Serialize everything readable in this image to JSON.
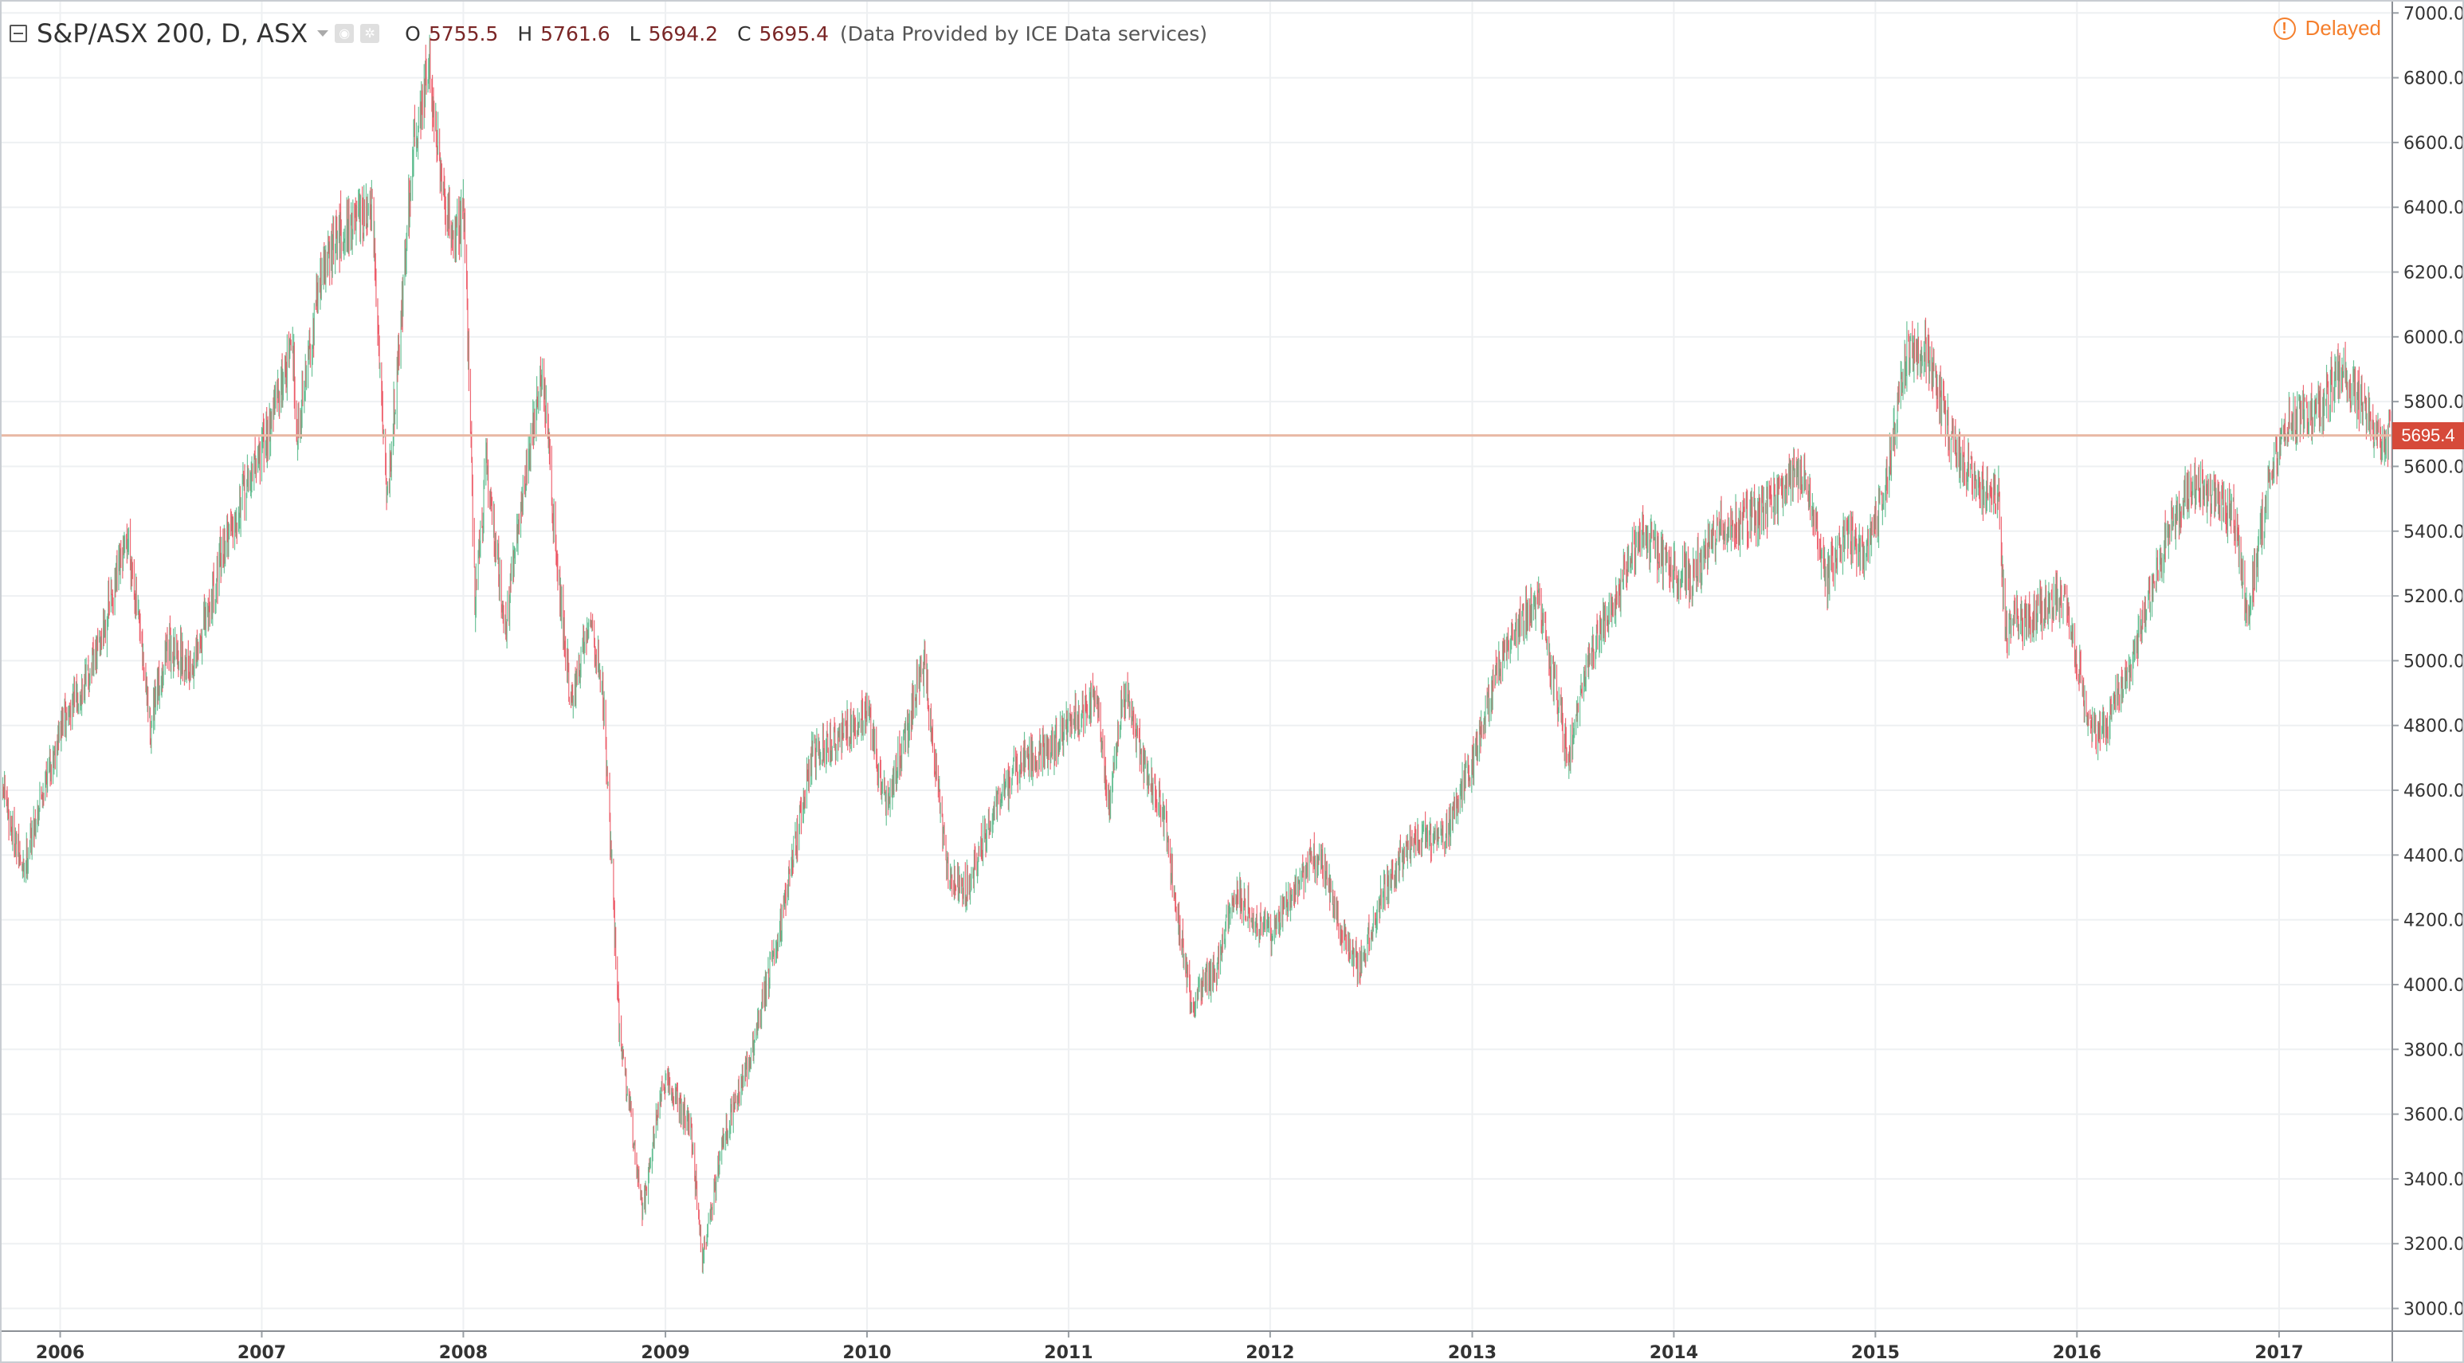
{
  "header": {
    "symbol": "S&P/ASX 200, D, ASX",
    "ohlc": [
      {
        "key": "O",
        "value": "5755.5"
      },
      {
        "key": "H",
        "value": "5761.6"
      },
      {
        "key": "L",
        "value": "5694.2"
      },
      {
        "key": "C",
        "value": "5695.4"
      }
    ],
    "provider": "(Data Provided by ICE Data services)",
    "status": "Delayed"
  },
  "colors": {
    "up": "#53b987",
    "down": "#eb4d5c",
    "last_price_line": "#e8b9a5",
    "last_price_tag": "#d64a3a",
    "grid": "#eef0f2",
    "axis_text": "#333333",
    "delayed": "#f57f2c"
  },
  "chart_data": {
    "type": "candlestick",
    "interval": "daily",
    "y_axis": {
      "position": "right",
      "range": [
        2930,
        7040
      ],
      "ticks": [
        "3000.0",
        "3200.0",
        "3400.0",
        "3600.0",
        "3800.0",
        "4000.0",
        "4200.0",
        "4400.0",
        "4600.0",
        "4800.0",
        "5000.0",
        "5200.0",
        "5400.0",
        "5600.0",
        "5800.0",
        "6000.0",
        "6200.0",
        "6400.0",
        "6600.0",
        "6800.0",
        "7000.0"
      ]
    },
    "x_axis": {
      "range": [
        "2005-09-14",
        "2017-07-25"
      ],
      "ticks": [
        "2006",
        "2007",
        "2008",
        "2009",
        "2010",
        "2011",
        "2012",
        "2013",
        "2014",
        "2015",
        "2016",
        "2017"
      ]
    },
    "last_price": "5695.4",
    "grid": true,
    "series": [
      {
        "approx_close_path": [
          [
            "2005-09-14",
            4630
          ],
          [
            "2005-10-25",
            4350
          ],
          [
            "2005-11-30",
            4600
          ],
          [
            "2006-01-04",
            4800
          ],
          [
            "2006-03-01",
            4980
          ],
          [
            "2006-05-05",
            5380
          ],
          [
            "2006-06-14",
            4780
          ],
          [
            "2006-07-12",
            5050
          ],
          [
            "2006-08-31",
            4980
          ],
          [
            "2006-11-01",
            5400
          ],
          [
            "2007-01-01",
            5650
          ],
          [
            "2007-02-26",
            5980
          ],
          [
            "2007-03-06",
            5700
          ],
          [
            "2007-04-19",
            6200
          ],
          [
            "2007-05-30",
            6340
          ],
          [
            "2007-06-28",
            6350
          ],
          [
            "2007-07-20",
            6380
          ],
          [
            "2007-08-16",
            5500
          ],
          [
            "2007-09-12",
            6100
          ],
          [
            "2007-10-03",
            6600
          ],
          [
            "2007-11-01",
            6830
          ],
          [
            "2007-11-26",
            6400
          ],
          [
            "2007-12-18",
            6300
          ],
          [
            "2008-01-03",
            6400
          ],
          [
            "2008-01-22",
            5200
          ],
          [
            "2008-02-12",
            5600
          ],
          [
            "2008-03-18",
            5100
          ],
          [
            "2008-04-16",
            5500
          ],
          [
            "2008-05-23",
            5900
          ],
          [
            "2008-06-19",
            5300
          ],
          [
            "2008-07-15",
            4850
          ],
          [
            "2008-08-16",
            5150
          ],
          [
            "2008-09-10",
            4900
          ],
          [
            "2008-10-10",
            3850
          ],
          [
            "2008-11-21",
            3300
          ],
          [
            "2008-12-16",
            3600
          ],
          [
            "2009-01-05",
            3700
          ],
          [
            "2009-02-16",
            3550
          ],
          [
            "2009-03-09",
            3150
          ],
          [
            "2009-04-13",
            3500
          ],
          [
            "2009-06-08",
            3800
          ],
          [
            "2009-07-29",
            4200
          ],
          [
            "2009-09-23",
            4700
          ],
          [
            "2009-11-07",
            4750
          ],
          [
            "2009-12-31",
            4850
          ],
          [
            "2010-02-05",
            4550
          ],
          [
            "2010-03-23",
            4850
          ],
          [
            "2010-04-15",
            5000
          ],
          [
            "2010-05-25",
            4350
          ],
          [
            "2010-07-02",
            4300
          ],
          [
            "2010-08-23",
            4550
          ],
          [
            "2010-10-08",
            4700
          ],
          [
            "2010-11-08",
            4700
          ],
          [
            "2011-01-04",
            4800
          ],
          [
            "2011-02-20",
            4900
          ],
          [
            "2011-03-16",
            4550
          ],
          [
            "2011-04-11",
            4900
          ],
          [
            "2011-05-24",
            4650
          ],
          [
            "2011-06-23",
            4500
          ],
          [
            "2011-08-11",
            3950
          ],
          [
            "2011-09-28",
            4050
          ],
          [
            "2011-10-27",
            4300
          ],
          [
            "2011-12-02",
            4200
          ],
          [
            "2012-01-06",
            4150
          ],
          [
            "2012-02-11",
            4300
          ],
          [
            "2012-03-31",
            4400
          ],
          [
            "2012-05-10",
            4150
          ],
          [
            "2012-06-09",
            4050
          ],
          [
            "2012-07-27",
            4300
          ],
          [
            "2012-09-20",
            4450
          ],
          [
            "2012-11-13",
            4450
          ],
          [
            "2013-01-02",
            4700
          ],
          [
            "2013-02-28",
            5050
          ],
          [
            "2013-05-01",
            5200
          ],
          [
            "2013-06-24",
            4700
          ],
          [
            "2013-07-31",
            5000
          ],
          [
            "2013-09-18",
            5200
          ],
          [
            "2013-11-03",
            5400
          ],
          [
            "2013-12-20",
            5300
          ],
          [
            "2014-02-02",
            5250
          ],
          [
            "2014-03-23",
            5400
          ],
          [
            "2014-06-06",
            5450
          ],
          [
            "2014-08-18",
            5600
          ],
          [
            "2014-10-06",
            5250
          ],
          [
            "2014-11-11",
            5400
          ],
          [
            "2014-12-15",
            5300
          ],
          [
            "2015-01-26",
            5600
          ],
          [
            "2015-02-26",
            5950
          ],
          [
            "2015-04-09",
            5950
          ],
          [
            "2015-05-15",
            5700
          ],
          [
            "2015-06-27",
            5550
          ],
          [
            "2015-08-12",
            5500
          ],
          [
            "2015-08-24",
            5100
          ],
          [
            "2015-10-14",
            5150
          ],
          [
            "2015-12-09",
            5200
          ],
          [
            "2016-01-20",
            4850
          ],
          [
            "2016-02-07",
            4750
          ],
          [
            "2016-04-09",
            5000
          ],
          [
            "2016-06-07",
            5350
          ],
          [
            "2016-07-25",
            5550
          ],
          [
            "2016-10-11",
            5450
          ],
          [
            "2016-11-06",
            5150
          ],
          [
            "2016-12-14",
            5550
          ],
          [
            "2017-01-21",
            5750
          ],
          [
            "2017-03-03",
            5750
          ],
          [
            "2017-04-30",
            5900
          ],
          [
            "2017-06-21",
            5700
          ],
          [
            "2017-07-25",
            5695
          ]
        ]
      }
    ]
  }
}
